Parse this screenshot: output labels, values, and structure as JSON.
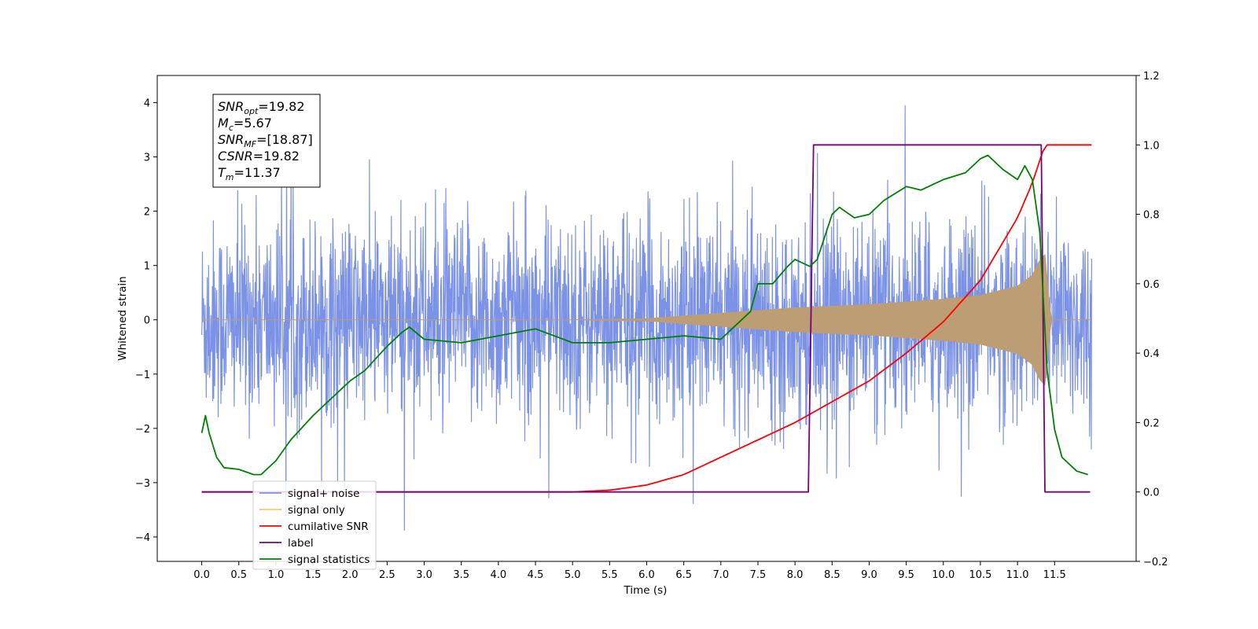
{
  "chart_data": {
    "type": "line",
    "title": "",
    "xlabel": "Time (s)",
    "ylabel": "Whitened strain",
    "y2label": "",
    "xlim": [
      -0.6,
      12.6
    ],
    "ylim": [
      -4.45,
      4.5
    ],
    "y2lim": [
      -0.2,
      1.2
    ],
    "x_ticks": [
      "0.0",
      "0.5",
      "1.0",
      "1.5",
      "2.0",
      "2.5",
      "3.0",
      "3.5",
      "4.0",
      "4.5",
      "5.0",
      "5.5",
      "6.0",
      "6.5",
      "7.0",
      "7.5",
      "8.0",
      "8.5",
      "9.0",
      "9.5",
      "10.0",
      "10.5",
      "11.0",
      "11.5"
    ],
    "y_ticks": [
      "−4",
      "−3",
      "−2",
      "−1",
      "0",
      "1",
      "2",
      "3",
      "4"
    ],
    "y2_ticks": [
      "−0.2",
      "0.0",
      "0.2",
      "0.4",
      "0.6",
      "0.8",
      "1.0",
      "1.2"
    ],
    "grid": false,
    "legend_position": "lower-left",
    "annotation": [
      {
        "name": "SNR",
        "sub": "opt",
        "value": "=19.82"
      },
      {
        "name": "M",
        "sub": "c",
        "value": "=5.67"
      },
      {
        "name": "SNR",
        "sub": "MF",
        "value": "=[18.87]"
      },
      {
        "name": "CSNR",
        "sub": "",
        "value": "=19.82"
      },
      {
        "name": "T",
        "sub": "m",
        "value": "=11.37"
      }
    ],
    "series": [
      {
        "name": "signal+ noise",
        "axis": "left",
        "color": "#7b92e6",
        "noise_envelope": {
          "x": [
            0.0,
            12.0
          ],
          "typical_amplitude": 1.7,
          "max": 4.12,
          "min": -4.05
        }
      },
      {
        "name": "signal only",
        "axis": "left",
        "color": "#bd9d74",
        "chirp_envelope": {
          "x": [
            0.0,
            5.0,
            6.0,
            7.0,
            8.0,
            9.0,
            10.0,
            10.5,
            11.0,
            11.2,
            11.3,
            11.37,
            11.45,
            12.0
          ],
          "amplitude": [
            0.0,
            0.0,
            0.02,
            0.12,
            0.22,
            0.28,
            0.38,
            0.45,
            0.62,
            0.82,
            1.1,
            1.2,
            0.0,
            0.0
          ]
        }
      },
      {
        "name": "cumilative SNR",
        "axis": "right",
        "color": "#ff0000",
        "x": [
          0.0,
          5.0,
          5.5,
          6.0,
          6.5,
          7.0,
          7.5,
          8.0,
          8.5,
          9.0,
          9.5,
          10.0,
          10.5,
          11.0,
          11.2,
          11.37,
          12.0
        ],
        "values": [
          0.0,
          0.0,
          0.005,
          0.02,
          0.05,
          0.1,
          0.15,
          0.2,
          0.26,
          0.32,
          0.4,
          0.49,
          0.61,
          0.79,
          0.89,
          1.0,
          1.0
        ]
      },
      {
        "name": "label",
        "axis": "right",
        "color": "#7b007b",
        "x": [
          0.0,
          8.18,
          8.25,
          11.32,
          11.37,
          11.98
        ],
        "values": [
          0.0,
          0.0,
          1.0,
          1.0,
          0.0,
          0.0
        ]
      },
      {
        "name": "signal statistics",
        "axis": "right",
        "color": "#008000",
        "x": [
          0.0,
          0.05,
          0.1,
          0.2,
          0.3,
          0.5,
          0.7,
          0.8,
          1.0,
          1.2,
          1.5,
          1.8,
          1.9,
          2.0,
          2.2,
          2.5,
          2.7,
          2.8,
          3.0,
          3.5,
          4.0,
          4.5,
          5.0,
          5.5,
          6.0,
          6.5,
          7.0,
          7.2,
          7.4,
          7.5,
          7.7,
          7.9,
          8.0,
          8.2,
          8.3,
          8.5,
          8.6,
          8.8,
          9.0,
          9.2,
          9.5,
          9.7,
          10.0,
          10.3,
          10.5,
          10.6,
          10.8,
          11.0,
          11.1,
          11.2,
          11.3,
          11.35,
          11.4,
          11.5,
          11.6,
          11.8,
          11.95
        ],
        "values": [
          0.17,
          0.22,
          0.17,
          0.1,
          0.07,
          0.065,
          0.05,
          0.05,
          0.09,
          0.15,
          0.22,
          0.28,
          0.3,
          0.32,
          0.35,
          0.42,
          0.46,
          0.475,
          0.44,
          0.43,
          0.45,
          0.47,
          0.43,
          0.43,
          0.44,
          0.45,
          0.44,
          0.48,
          0.52,
          0.6,
          0.6,
          0.65,
          0.67,
          0.65,
          0.67,
          0.8,
          0.82,
          0.79,
          0.8,
          0.84,
          0.88,
          0.87,
          0.9,
          0.92,
          0.96,
          0.97,
          0.93,
          0.9,
          0.94,
          0.9,
          0.75,
          0.55,
          0.35,
          0.18,
          0.1,
          0.06,
          0.05
        ]
      }
    ],
    "legend": [
      {
        "label": "signal+ noise",
        "color": "#7b92e6"
      },
      {
        "label": "signal only",
        "color": "#ffc46b"
      },
      {
        "label": "cumilative SNR",
        "color": "#ff0000"
      },
      {
        "label": "label",
        "color": "#7b007b"
      },
      {
        "label": "signal statistics",
        "color": "#008000"
      }
    ]
  }
}
